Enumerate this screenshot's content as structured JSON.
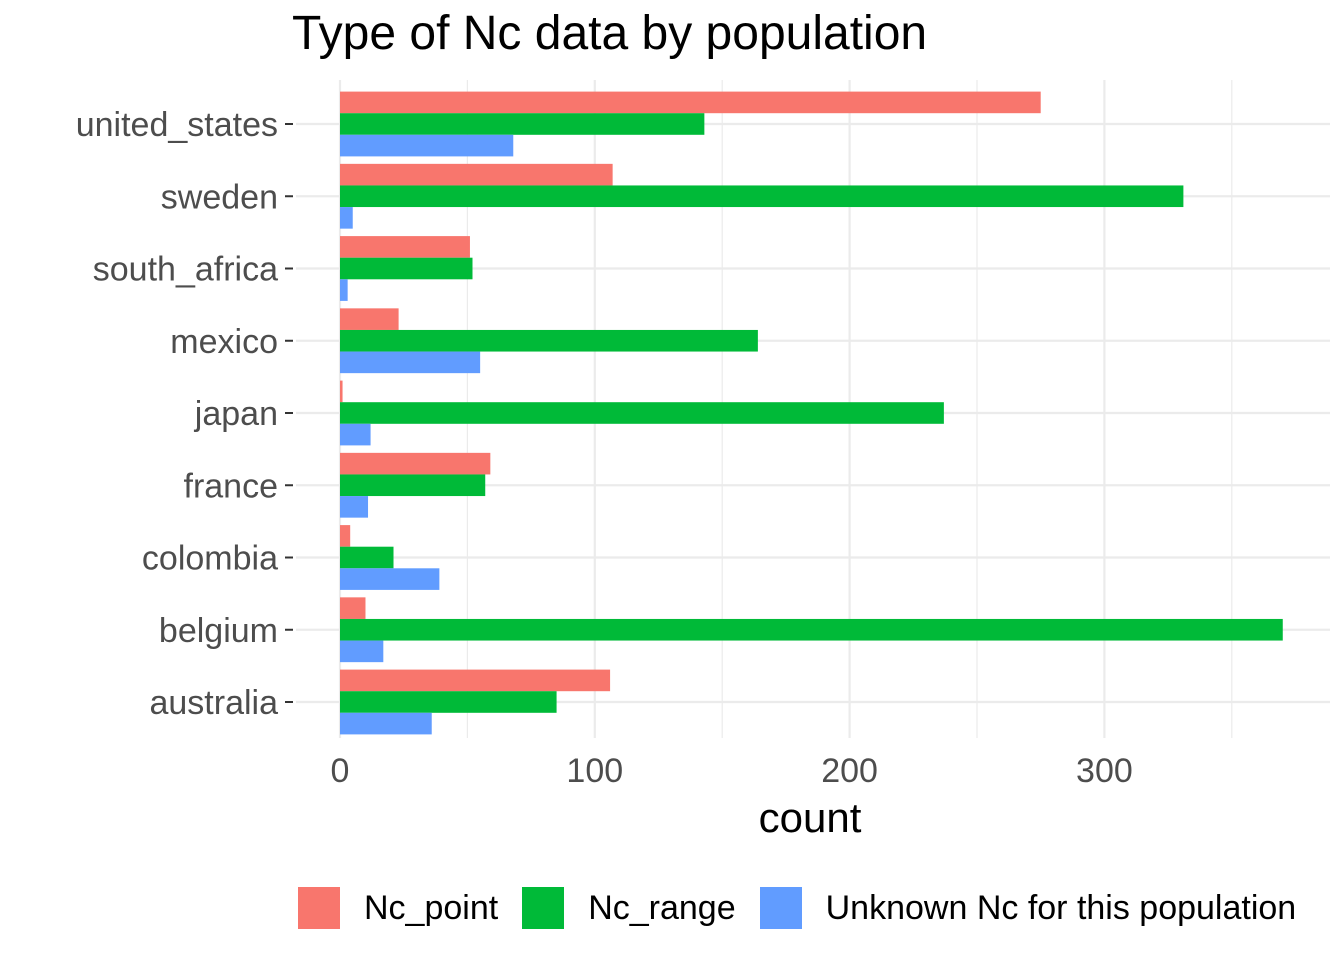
{
  "chart_data": {
    "type": "bar",
    "orientation": "horizontal",
    "title": "Type of Nc data by population",
    "xlabel": "count",
    "ylabel": "",
    "categories": [
      "united_states",
      "sweden",
      "south_africa",
      "mexico",
      "japan",
      "france",
      "colombia",
      "belgium",
      "australia"
    ],
    "xlim": [
      0,
      370
    ],
    "x_ticks": [
      0,
      100,
      200,
      300
    ],
    "grid": true,
    "legend_position": "bottom",
    "series": [
      {
        "name": "Nc_point",
        "color": "#F8766D",
        "values": [
          275,
          107,
          51,
          23,
          1,
          59,
          4,
          10,
          106
        ]
      },
      {
        "name": "Nc_range",
        "color": "#00BA38",
        "values": [
          143,
          331,
          52,
          164,
          237,
          57,
          21,
          370,
          85
        ]
      },
      {
        "name": "Unknown Nc for this population",
        "color": "#619CFF",
        "values": [
          68,
          5,
          3,
          55,
          12,
          11,
          39,
          17,
          36
        ]
      }
    ]
  }
}
